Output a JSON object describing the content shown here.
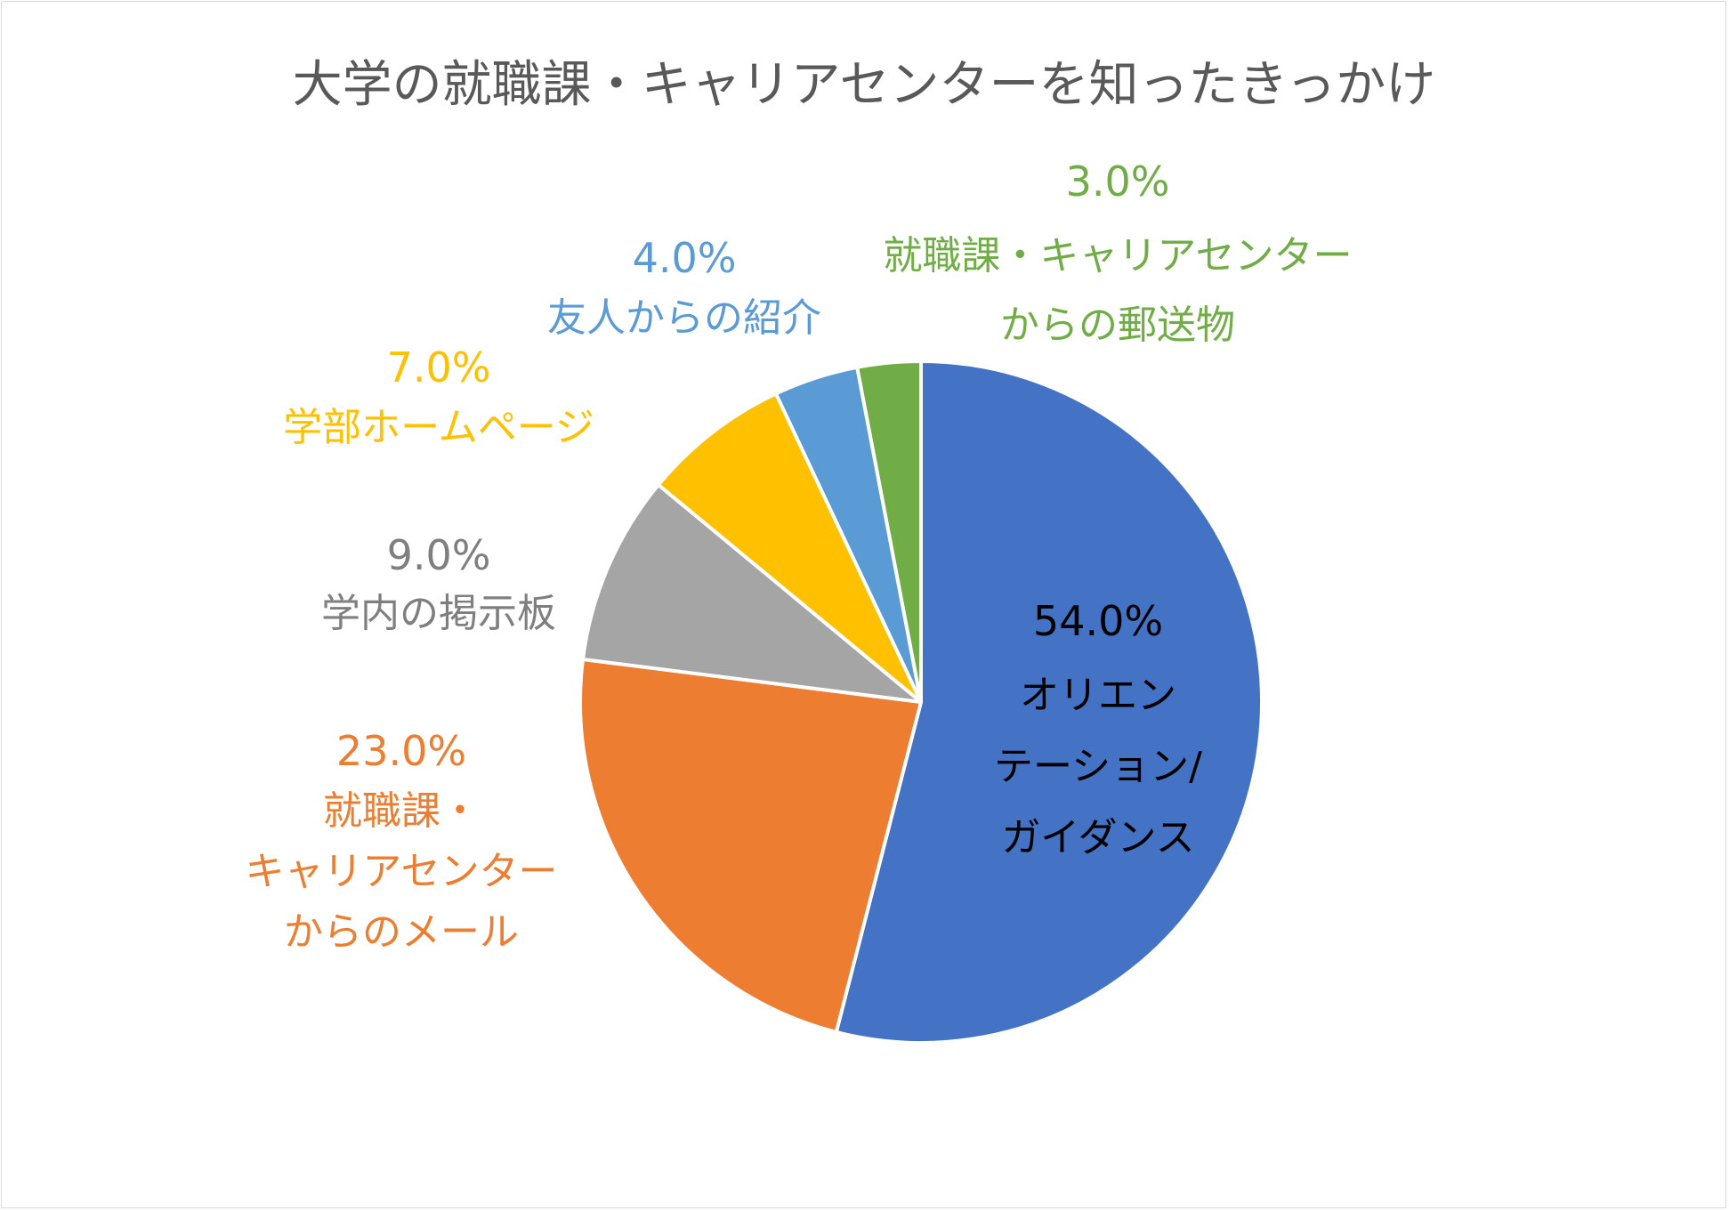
{
  "chart_data": {
    "type": "pie",
    "title": "大学の就職課・キャリアセンターを知ったきっかけ",
    "start_angle_deg": 0,
    "direction": "clockwise",
    "slices": [
      {
        "name": "オリエンテーション/ガイダンス",
        "value": 54.0,
        "value_label": "54.0%",
        "color": "#4472C4",
        "label_color": "#000000",
        "label_lines": [
          "オリエン",
          "テーション/",
          "ガイダンス"
        ]
      },
      {
        "name": "就職課・キャリアセンターからのメール",
        "value": 23.0,
        "value_label": "23.0%",
        "color": "#ED7D31",
        "label_color": "#ED7D31",
        "label_lines": [
          "就職課・",
          "キャリアセンター",
          "からのメール"
        ]
      },
      {
        "name": "学内の掲示板",
        "value": 9.0,
        "value_label": "9.0%",
        "color": "#A5A5A5",
        "label_color": "#7F7F7F",
        "label_lines": [
          "学内の掲示板"
        ]
      },
      {
        "name": "学部ホームページ",
        "value": 7.0,
        "value_label": "7.0%",
        "color": "#FFC000",
        "label_color": "#FFC000",
        "label_lines": [
          "学部ホームページ"
        ]
      },
      {
        "name": "友人からの紹介",
        "value": 4.0,
        "value_label": "4.0%",
        "color": "#5B9BD5",
        "label_color": "#5B9BD5",
        "label_lines": [
          "友人からの紹介"
        ]
      },
      {
        "name": "就職課・キャリアセンターからの郵送物",
        "value": 3.0,
        "value_label": "3.0%",
        "color": "#70AD47",
        "label_color": "#70AD47",
        "label_lines": [
          "就職課・キャリアセンター",
          "からの郵送物"
        ]
      }
    ]
  }
}
